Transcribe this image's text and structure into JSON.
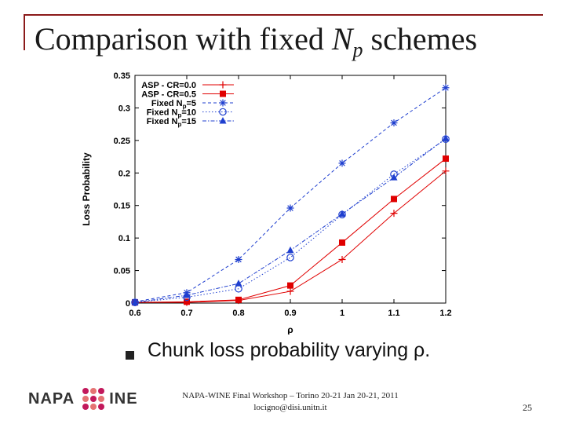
{
  "slide": {
    "title_prefix": "Comparison with fixed ",
    "title_var": "N",
    "title_sub": "p",
    "title_suffix": " schemes",
    "bullet_text": "Chunk loss probability varying ρ.",
    "footer_line1": "NAPA-WINE Final Workshop – Torino 20-21 Jan 20-21, 2011",
    "footer_line2": "locigno@disi.unitn.it",
    "page_number": "25",
    "logo_left": "NAPA",
    "logo_right": "INE"
  },
  "colors": {
    "frame": "#8b1a1a",
    "red": "#e00000",
    "blue": "#1f3fcf",
    "logo": "#c2185b"
  },
  "chart_data": {
    "type": "line",
    "xlabel": "ρ",
    "ylabel": "Loss Probability",
    "xlim": [
      0.6,
      1.2
    ],
    "ylim": [
      0,
      0.35
    ],
    "x_ticks": [
      "0.6",
      "0.7",
      "0.8",
      "0.9",
      "1",
      "1.1",
      "1.2"
    ],
    "y_ticks": [
      "0",
      "0.05",
      "0.1",
      "0.15",
      "0.2",
      "0.25",
      "0.3",
      "0.35"
    ],
    "x": [
      0.6,
      0.7,
      0.8,
      0.9,
      1.0,
      1.1,
      1.2
    ],
    "legend_position": "top-left",
    "series": [
      {
        "name": "ASP - CR=0.0",
        "color": "#e00000",
        "marker": "plus",
        "dash": "solid",
        "values": [
          0.001,
          0.001,
          0.004,
          0.018,
          0.067,
          0.138,
          0.203
        ]
      },
      {
        "name": "ASP - CR=0.5",
        "color": "#e00000",
        "marker": "square",
        "dash": "solid",
        "values": [
          0.001,
          0.002,
          0.005,
          0.027,
          0.093,
          0.16,
          0.222
        ]
      },
      {
        "name": "Fixed Np=5",
        "color": "#1f3fcf",
        "marker": "star",
        "dash": "dashed",
        "values": [
          0.002,
          0.016,
          0.067,
          0.146,
          0.215,
          0.277,
          0.331
        ]
      },
      {
        "name": "Fixed Np=10",
        "color": "#1f3fcf",
        "marker": "circle",
        "dash": "dotted",
        "values": [
          0.001,
          0.009,
          0.022,
          0.07,
          0.136,
          0.198,
          0.252
        ]
      },
      {
        "name": "Fixed Np=15",
        "color": "#1f3fcf",
        "marker": "triangle",
        "dash": "dashdot",
        "values": [
          0.001,
          0.012,
          0.03,
          0.081,
          0.137,
          0.193,
          0.253
        ]
      }
    ]
  }
}
